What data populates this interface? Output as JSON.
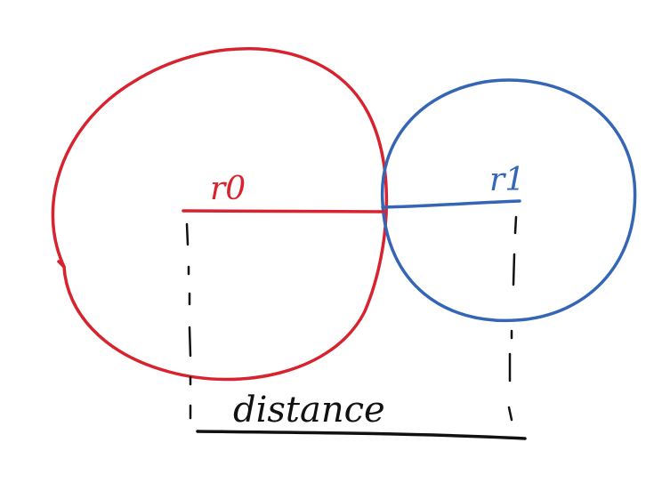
{
  "colors": {
    "circle0": "#d8232f",
    "circle1": "#3566b5",
    "ink": "#111111"
  },
  "labels": {
    "r0": "r0",
    "r1": "r1",
    "distance": "distance"
  }
}
